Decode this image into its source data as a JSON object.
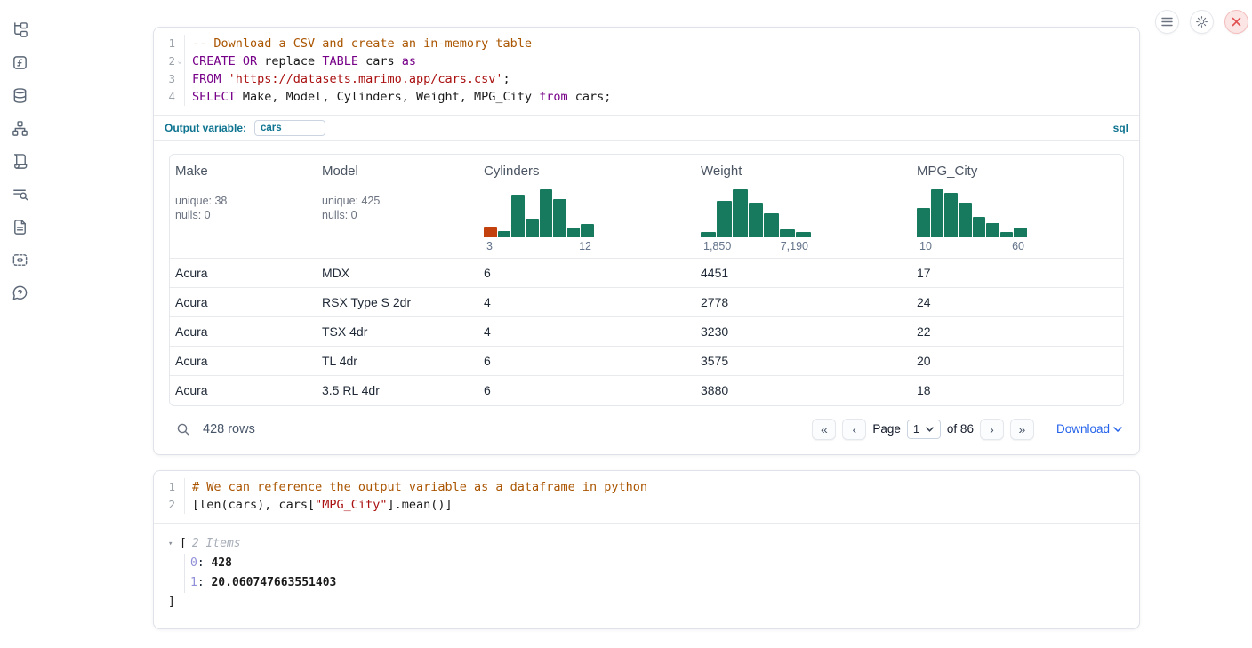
{
  "topbar": {
    "buttons": [
      {
        "name": "menu-button",
        "icon": "hamburger-icon"
      },
      {
        "name": "settings-button",
        "icon": "gear-icon"
      },
      {
        "name": "close-button",
        "icon": "close-x-icon"
      }
    ]
  },
  "sidebar": {
    "items": [
      {
        "icon": "file-tree-icon"
      },
      {
        "icon": "function-icon"
      },
      {
        "icon": "database-icon"
      },
      {
        "icon": "dependency-graph-icon"
      },
      {
        "icon": "scroll-icon"
      },
      {
        "icon": "search-list-icon"
      },
      {
        "icon": "document-icon"
      },
      {
        "icon": "snippets-icon"
      },
      {
        "icon": "help-icon"
      }
    ]
  },
  "colors": {
    "accent_teal": "#0E7490",
    "hist_green": "#17795E",
    "hist_highlight_orange": "#C2410C",
    "link_blue": "#2563EB",
    "keyword": "#770088",
    "comment": "#AA5500",
    "string": "#AA1111"
  },
  "cells": [
    {
      "language_badge": "sql",
      "code": [
        {
          "no": "1",
          "tokens": [
            {
              "c": "comment",
              "t": "-- Download a CSV and create an in-memory table"
            }
          ]
        },
        {
          "no": "2",
          "fold": true,
          "tokens": [
            {
              "c": "kw",
              "t": "CREATE OR"
            },
            {
              "c": "pl",
              "t": " replace "
            },
            {
              "c": "kw",
              "t": "TABLE"
            },
            {
              "c": "pl",
              "t": " cars "
            },
            {
              "c": "kw",
              "t": "as"
            }
          ]
        },
        {
          "no": "3",
          "tokens": [
            {
              "c": "kw",
              "t": "FROM"
            },
            {
              "c": "pl",
              "t": " "
            },
            {
              "c": "str",
              "t": "'https://datasets.marimo.app/cars.csv'"
            },
            {
              "c": "pl",
              "t": ";"
            }
          ]
        },
        {
          "no": "4",
          "tokens": [
            {
              "c": "kw",
              "t": "SELECT"
            },
            {
              "c": "pl",
              "t": " Make, Model, Cylinders, Weight, MPG_City "
            },
            {
              "c": "kw",
              "t": "from"
            },
            {
              "c": "pl",
              "t": " cars;"
            }
          ]
        }
      ],
      "output_variable": {
        "label": "Output variable:",
        "value": "cars"
      },
      "table": {
        "columns": [
          {
            "name": "Make",
            "stats": [
              "unique: 38",
              "nulls: 0"
            ]
          },
          {
            "name": "Model",
            "stats": [
              "unique: 425",
              "nulls: 0"
            ]
          },
          {
            "name": "Cylinders",
            "hist": {
              "min": "3",
              "max": "12",
              "bars": [
                0.22,
                0.13,
                0.88,
                0.38,
                1.0,
                0.8,
                0.2,
                0.27
              ],
              "first_bar_color": "#C2410C"
            }
          },
          {
            "name": "Weight",
            "hist": {
              "min": "1,850",
              "max": "7,190",
              "bars": [
                0.12,
                0.75,
                1.0,
                0.73,
                0.5,
                0.16,
                0.11
              ]
            }
          },
          {
            "name": "MPG_City",
            "hist": {
              "min": "10",
              "max": "60",
              "bars": [
                0.62,
                1.0,
                0.93,
                0.72,
                0.42,
                0.3,
                0.12,
                0.2
              ]
            }
          }
        ],
        "rows": [
          [
            "Acura",
            "MDX",
            "6",
            "4451",
            "17"
          ],
          [
            "Acura",
            "RSX Type S 2dr",
            "4",
            "2778",
            "24"
          ],
          [
            "Acura",
            "TSX 4dr",
            "4",
            "3230",
            "22"
          ],
          [
            "Acura",
            "TL 4dr",
            "6",
            "3575",
            "20"
          ],
          [
            "Acura",
            "3.5 RL 4dr",
            "6",
            "3880",
            "18"
          ]
        ],
        "footer": {
          "rows_count": "428 rows",
          "first_icon": "«",
          "prev_icon": "‹",
          "page_label": "Page",
          "page_value": "1",
          "of_label": "of 86",
          "next_icon": "›",
          "last_icon": "»",
          "download_label": "Download"
        }
      }
    },
    {
      "code": [
        {
          "no": "1",
          "tokens": [
            {
              "c": "comment",
              "t": "# We can reference the output variable as a dataframe in python"
            }
          ]
        },
        {
          "no": "2",
          "tokens": [
            {
              "c": "pl",
              "t": "[len(cars), cars["
            },
            {
              "c": "str",
              "t": "\"MPG_City\""
            },
            {
              "c": "pl",
              "t": "].mean()]"
            }
          ]
        }
      ],
      "output": {
        "open_bracket": "[",
        "items_label": "2 Items",
        "entries": [
          {
            "index": "0",
            "value": "428"
          },
          {
            "index": "1",
            "value": "20.060747663551403"
          }
        ],
        "close_bracket": "]"
      }
    }
  ]
}
